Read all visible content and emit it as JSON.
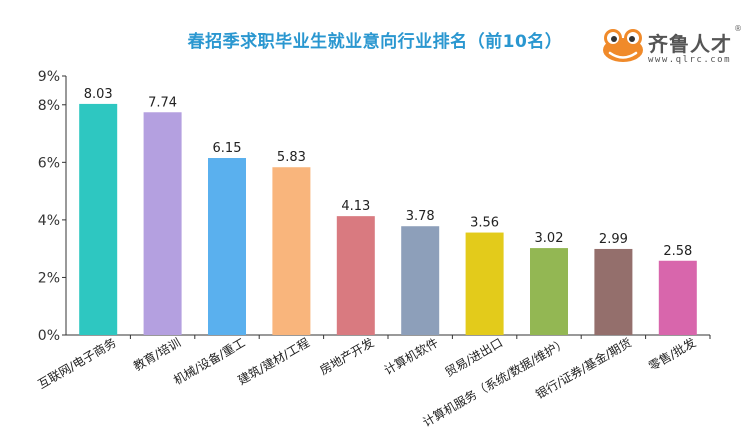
{
  "title": "春招季求职毕业生就业意向行业排名（前10名）",
  "logo": {
    "name": "齐鲁人才",
    "registered_mark": "®",
    "url": "www.qlrc.com"
  },
  "colors": {
    "title": "#2a97d0",
    "axis": "#333333"
  },
  "chart_data": {
    "type": "bar",
    "title": "春招季求职毕业生就业意向行业排名（前10名）",
    "xlabel": "",
    "ylabel": "",
    "ylim": [
      0,
      9
    ],
    "yticks": [
      "0%",
      "2%",
      "4%",
      "6%",
      "8%",
      "9%"
    ],
    "ytick_values": [
      0,
      2,
      4,
      6,
      8,
      9
    ],
    "grid": false,
    "categories": [
      "互联网/电子商务",
      "教育/培训",
      "机械/设备/重工",
      "建筑/建材/工程",
      "房地产开发",
      "计算机软件",
      "贸易/进出口",
      "计算机服务（系统/数据/维护）",
      "银行/证券/基金/期货",
      "零售/批发"
    ],
    "values": [
      8.03,
      7.74,
      6.15,
      5.83,
      4.13,
      3.78,
      3.56,
      3.02,
      2.99,
      2.58
    ],
    "value_labels": [
      "8.03",
      "7.74",
      "6.15",
      "5.83",
      "4.13",
      "3.78",
      "3.56",
      "3.02",
      "2.99",
      "2.58"
    ],
    "bar_colors": [
      "#2ec7c1",
      "#b4a0e0",
      "#5ab0ee",
      "#f9b57c",
      "#d97a80",
      "#8d9fba",
      "#e3cb1b",
      "#93b753",
      "#946f6c",
      "#d866ac"
    ]
  }
}
